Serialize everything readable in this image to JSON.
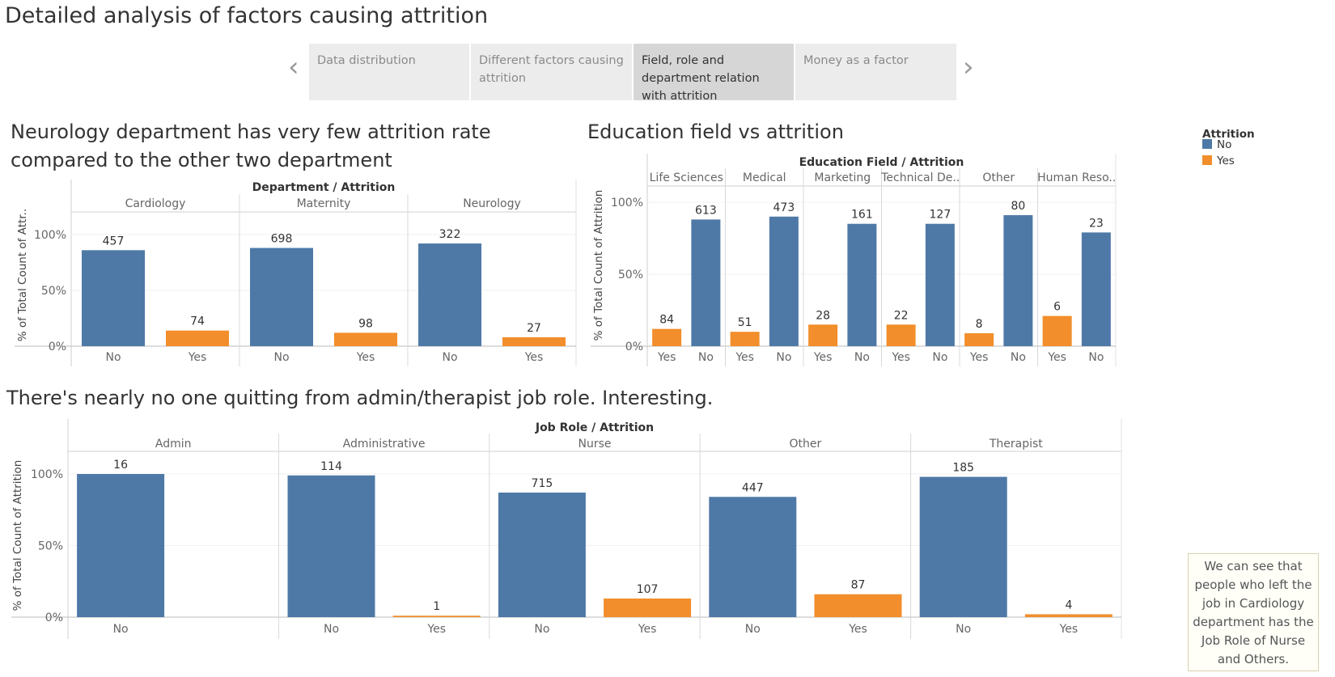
{
  "page": {
    "title": "Detailed analysis of factors causing attrition"
  },
  "colors": {
    "no": "#4e79a7",
    "yes": "#f28e2b",
    "active_tab": "#d6d6d6",
    "tab": "#ececec"
  },
  "tabs": [
    {
      "label": "Data distribution",
      "active": false
    },
    {
      "label": "Different factors causing attrition",
      "active": false
    },
    {
      "label": "Field, role and department relation with attrition",
      "active": true
    },
    {
      "label": "Money as a factor",
      "active": false
    }
  ],
  "nav": {
    "prev_icon": "chevron-left-icon",
    "next_icon": "chevron-right-icon"
  },
  "sections": {
    "department_title": "Neurology department has very few attrition rate compared to the other two department",
    "education_title": "Education field vs attrition",
    "jobrole_title": "There's nearly no one quitting from admin/therapist job role. Interesting."
  },
  "legend": {
    "title": "Attrition",
    "items": [
      {
        "label": "No",
        "color": "#4e79a7"
      },
      {
        "label": "Yes",
        "color": "#f28e2b"
      }
    ]
  },
  "annotation": "We can see that people who left the job in Cardiology department has the Job Role of Nurse and Others.",
  "chart_data": [
    {
      "id": "department",
      "type": "bar",
      "header": "Department / Attrition",
      "ylabel": "% of Total Count of Attr..",
      "yticks": [
        "100%",
        "50%",
        "0%"
      ],
      "ylim": [
        0,
        100
      ],
      "groups": [
        {
          "name": "Cardiology",
          "bars": [
            {
              "label": "No",
              "pct": 86,
              "count": "457"
            },
            {
              "label": "Yes",
              "pct": 14,
              "count": "74"
            }
          ]
        },
        {
          "name": "Maternity",
          "bars": [
            {
              "label": "No",
              "pct": 88,
              "count": "698"
            },
            {
              "label": "Yes",
              "pct": 12,
              "count": "98"
            }
          ]
        },
        {
          "name": "Neurology",
          "bars": [
            {
              "label": "No",
              "pct": 92,
              "count": "322"
            },
            {
              "label": "Yes",
              "pct": 8,
              "count": "27"
            }
          ]
        }
      ]
    },
    {
      "id": "education",
      "type": "bar",
      "header": "Education Field / Attrition",
      "ylabel": "% of Total Count of Attrition",
      "yticks": [
        "100%",
        "50%",
        "0%"
      ],
      "ylim": [
        0,
        100
      ],
      "groups": [
        {
          "name": "Life Sciences",
          "bars": [
            {
              "label": "Yes",
              "pct": 12,
              "count": "84"
            },
            {
              "label": "No",
              "pct": 88,
              "count": "613"
            }
          ]
        },
        {
          "name": "Medical",
          "bars": [
            {
              "label": "Yes",
              "pct": 10,
              "count": "51"
            },
            {
              "label": "No",
              "pct": 90,
              "count": "473"
            }
          ]
        },
        {
          "name": "Marketing",
          "bars": [
            {
              "label": "Yes",
              "pct": 15,
              "count": "28"
            },
            {
              "label": "No",
              "pct": 85,
              "count": "161"
            }
          ]
        },
        {
          "name": "Technical De..",
          "bars": [
            {
              "label": "Yes",
              "pct": 15,
              "count": "22"
            },
            {
              "label": "No",
              "pct": 85,
              "count": "127"
            }
          ]
        },
        {
          "name": "Other",
          "bars": [
            {
              "label": "Yes",
              "pct": 9,
              "count": "8"
            },
            {
              "label": "No",
              "pct": 91,
              "count": "80"
            }
          ]
        },
        {
          "name": "Human Reso..",
          "bars": [
            {
              "label": "Yes",
              "pct": 21,
              "count": "6"
            },
            {
              "label": "No",
              "pct": 79,
              "count": "23"
            }
          ]
        }
      ]
    },
    {
      "id": "jobrole",
      "type": "bar",
      "header": "Job Role / Attrition",
      "ylabel": "% of Total Count of Attrition",
      "yticks": [
        "100%",
        "50%",
        "0%"
      ],
      "ylim": [
        0,
        100
      ],
      "groups": [
        {
          "name": "Admin",
          "bars": [
            {
              "label": "No",
              "pct": 100,
              "count": "16"
            }
          ]
        },
        {
          "name": "Administrative",
          "bars": [
            {
              "label": "No",
              "pct": 99,
              "count": "114"
            },
            {
              "label": "Yes",
              "pct": 1,
              "count": "1"
            }
          ]
        },
        {
          "name": "Nurse",
          "bars": [
            {
              "label": "No",
              "pct": 87,
              "count": "715"
            },
            {
              "label": "Yes",
              "pct": 13,
              "count": "107"
            }
          ]
        },
        {
          "name": "Other",
          "bars": [
            {
              "label": "No",
              "pct": 84,
              "count": "447"
            },
            {
              "label": "Yes",
              "pct": 16,
              "count": "87"
            }
          ]
        },
        {
          "name": "Therapist",
          "bars": [
            {
              "label": "No",
              "pct": 98,
              "count": "185"
            },
            {
              "label": "Yes",
              "pct": 2,
              "count": "4"
            }
          ]
        }
      ]
    }
  ]
}
